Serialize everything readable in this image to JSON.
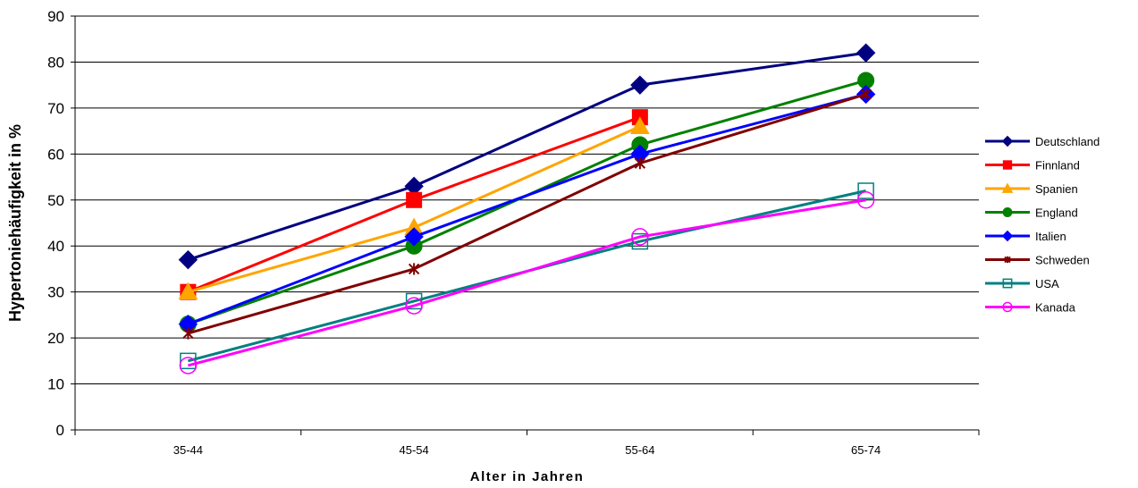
{
  "chart_data": {
    "type": "line",
    "title": "",
    "xlabel": "Alter in Jahren",
    "ylabel": "Hypertoniehäufigkeit  in %",
    "ylim": [
      0,
      90
    ],
    "yticks": [
      "0",
      "10",
      "20",
      "30",
      "40",
      "50",
      "60",
      "70",
      "80",
      "90"
    ],
    "categories": [
      "35-44",
      "45-54",
      "55-64",
      "65-74"
    ],
    "grid": "horizontal",
    "legend_position": "right",
    "series": [
      {
        "name": "Deutschland",
        "values": [
          37,
          53,
          75,
          82
        ],
        "color": "#000080",
        "marker": "diamond"
      },
      {
        "name": "Finnland",
        "values": [
          30,
          50,
          68,
          null
        ],
        "color": "#FF0000",
        "marker": "square"
      },
      {
        "name": "Spanien",
        "values": [
          30,
          44,
          66,
          null
        ],
        "color": "#FFA500",
        "marker": "triangle"
      },
      {
        "name": "England",
        "values": [
          23,
          40,
          62,
          76
        ],
        "color": "#008000",
        "marker": "circle"
      },
      {
        "name": "Italien",
        "values": [
          23,
          42,
          60,
          73
        ],
        "color": "#0000FF",
        "marker": "diamond"
      },
      {
        "name": "Schweden",
        "values": [
          21,
          35,
          58,
          73
        ],
        "color": "#800000",
        "marker": "star"
      },
      {
        "name": "USA",
        "values": [
          15,
          28,
          41,
          52
        ],
        "color": "#008080",
        "marker": "open-square"
      },
      {
        "name": "Kanada",
        "values": [
          14,
          27,
          42,
          50
        ],
        "color": "#FF00FF",
        "marker": "open-circle"
      }
    ]
  }
}
